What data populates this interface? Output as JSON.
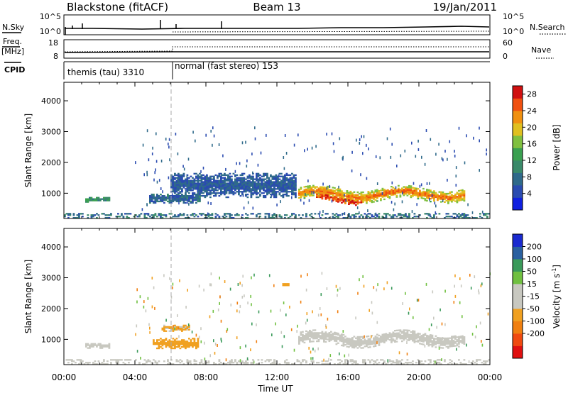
{
  "header": {
    "station": "Blackstone (fitACF)",
    "beam": "Beam 13",
    "date": "19/Jan/2011"
  },
  "summary_panels": {
    "nsky_label": "N.Sky",
    "nsearch_label": "N.Search",
    "count_ticks": [
      "10^5",
      "10^0"
    ],
    "freq_label_1": "Freq.",
    "freq_label_2": "[MHz]",
    "freq_ticks": [
      "18",
      "8"
    ],
    "nave_label": "Nave",
    "nave_ticks": [
      "60",
      "0"
    ],
    "cpid_label": "CPID",
    "cpid_segments": [
      {
        "text": "themis (tau) 3310",
        "start_hour": 0,
        "end_hour": 6
      },
      {
        "text": "normal (fast stereo) 153",
        "start_hour": 6,
        "end_hour": 24
      }
    ]
  },
  "axes": {
    "x_label": "Time UT",
    "x_ticks": [
      "00:00",
      "04:00",
      "08:00",
      "12:00",
      "16:00",
      "20:00",
      "00:00"
    ],
    "y_label": "Slant Range [km]",
    "y_ticks": [
      "1000",
      "2000",
      "3000",
      "4000"
    ]
  },
  "colors": {
    "power_scale": [
      "#1020e0",
      "#2a4bb0",
      "#2f6a8a",
      "#3a8a6a",
      "#3aa050",
      "#80c040",
      "#e0c020",
      "#f09010",
      "#f05010",
      "#d01010"
    ],
    "velocity_scale": [
      "#e01010",
      "#f04a10",
      "#f07f10",
      "#f0a020",
      "#c8c8c0",
      "#c8c8c0",
      "#70c040",
      "#3a9a5a",
      "#2a60a0",
      "#1a2ad0"
    ]
  },
  "chart_data": [
    {
      "type": "heatmap",
      "title": "Power",
      "colorbar_label": "Power [dB]",
      "colorbar_ticks": [
        "4",
        "8",
        "12",
        "16",
        "20",
        "24",
        "28"
      ],
      "x_range_hours": [
        0,
        24
      ],
      "y_range_km": [
        180,
        4600
      ],
      "value_range": [
        0,
        30
      ],
      "features": [
        {
          "name": "patch",
          "t_start": 1.2,
          "t_end": 2.6,
          "r_center": 780,
          "r_width": 160,
          "value": 11
        },
        {
          "name": "dawn echoes",
          "t_start": 4.8,
          "t_end": 7.6,
          "r_center": 820,
          "r_width": 300,
          "value": 7
        },
        {
          "name": "scattered echoes",
          "t_start": 6.0,
          "t_end": 13.0,
          "r_center": 1250,
          "r_width": 800,
          "value": 6
        },
        {
          "name": "main band",
          "t_start": 13.2,
          "t_end": 22.6,
          "r_center": 950,
          "r_width": 380,
          "value": 16
        },
        {
          "name": "main band core",
          "t_start": 14.2,
          "t_end": 16.8,
          "r_center": 780,
          "r_width": 160,
          "value": 26
        },
        {
          "name": "main band core 2",
          "t_start": 17.0,
          "t_end": 21.8,
          "r_center": 960,
          "r_width": 130,
          "value": 24
        },
        {
          "name": "ground scatter",
          "t_start": 0.0,
          "t_end": 24.0,
          "r_center": 250,
          "r_width": 140,
          "value": 8
        }
      ]
    },
    {
      "type": "heatmap",
      "title": "Velocity",
      "colorbar_label": "Velocity [m s^-1]",
      "colorbar_ticks": [
        "200",
        "100",
        "50",
        "15",
        "-15",
        "-50",
        "-100",
        "-200"
      ],
      "x_range_hours": [
        0,
        24
      ],
      "y_range_km": [
        180,
        4600
      ],
      "value_range": [
        -250,
        250
      ],
      "features": [
        {
          "name": "patch",
          "t_start": 1.2,
          "t_end": 2.6,
          "r_center": 780,
          "r_width": 160,
          "value": 0
        },
        {
          "name": "dawn flow",
          "t_start": 5.0,
          "t_end": 7.5,
          "r_center": 850,
          "r_width": 320,
          "value": -70
        },
        {
          "name": "dawn flow upper",
          "t_start": 5.5,
          "t_end": 7.0,
          "r_center": 1350,
          "r_width": 200,
          "value": -60
        },
        {
          "name": "spot",
          "t_start": 12.3,
          "t_end": 12.7,
          "r_center": 2750,
          "r_width": 120,
          "value": -80
        },
        {
          "name": "main band",
          "t_start": 13.2,
          "t_end": 22.6,
          "r_center": 1000,
          "r_width": 380,
          "value": 0
        },
        {
          "name": "ground scatter",
          "t_start": 0.0,
          "t_end": 24.0,
          "r_center": 250,
          "r_width": 140,
          "value": 0
        }
      ]
    }
  ]
}
